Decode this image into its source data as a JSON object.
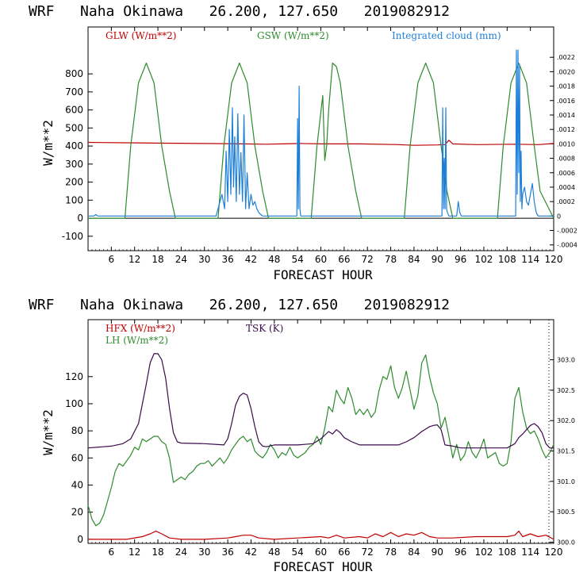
{
  "chart_data": [
    {
      "type": "line",
      "title": "WRF   Naha Okinawa   26.200, 127.650   2019082912",
      "xlabel": "FORECAST HOUR",
      "ylabel": "W/m**2",
      "xlim": [
        0,
        120
      ],
      "ylim": [
        -180,
        1060
      ],
      "yticks": [
        "-100",
        "0",
        "100",
        "200",
        "300",
        "400",
        "500",
        "600",
        "700",
        "800"
      ],
      "xticks": [
        "6",
        "12",
        "18",
        "24",
        "30",
        "36",
        "42",
        "48",
        "54",
        "60",
        "66",
        "72",
        "78",
        "84",
        "90",
        "96",
        "102",
        "108",
        "114",
        "120"
      ],
      "y2lim": [
        -0.00048,
        0.00262
      ],
      "y2ticks": [
        "-.0004",
        "-.0002",
        "0",
        ".0002",
        ".0004",
        ".0006",
        ".0008",
        ".0010",
        ".0012",
        ".0014",
        ".0016",
        ".0018",
        ".0020",
        ".0022"
      ],
      "grid": false,
      "legend": "top",
      "series": [
        {
          "name": "GLW (W/m**2)",
          "color": "#c00000",
          "x": [
            0,
            10,
            20,
            30,
            40,
            46,
            50,
            55,
            60,
            70,
            80,
            84,
            90,
            92,
            93,
            94,
            100,
            110,
            116,
            120
          ],
          "y": [
            420,
            418,
            416,
            414,
            412,
            410,
            412,
            414,
            412,
            412,
            408,
            404,
            406,
            408,
            432,
            412,
            408,
            410,
            408,
            414
          ]
        },
        {
          "name": "GSW (W/m**2)",
          "color": "#2e8b2e",
          "x": [
            0,
            9.5,
            11,
            13,
            15,
            17,
            19,
            21,
            22.5,
            33.5,
            35,
            37,
            39,
            41,
            43,
            45,
            46.5,
            57.5,
            59,
            60.5,
            61,
            61.5,
            62,
            63,
            64,
            65,
            67,
            69,
            70.5,
            81.5,
            83,
            85,
            87,
            89,
            91,
            92.5,
            94,
            105.5,
            107,
            109,
            111,
            113,
            115,
            116.5,
            120
          ],
          "y": [
            0,
            0,
            400,
            750,
            860,
            750,
            400,
            150,
            0,
            0,
            400,
            750,
            860,
            750,
            400,
            150,
            0,
            0,
            400,
            680,
            320,
            400,
            600,
            860,
            840,
            750,
            400,
            150,
            0,
            0,
            400,
            750,
            860,
            750,
            400,
            150,
            0,
            0,
            400,
            750,
            860,
            750,
            400,
            150,
            0
          ]
        },
        {
          "name": "Integrated cloud (mm)",
          "color": "#1e7fd8",
          "x": [
            0,
            1.5,
            2,
            2.5,
            33,
            34.5,
            35.2,
            35.6,
            36,
            36.4,
            36.8,
            37.2,
            37.5,
            37.8,
            38.2,
            38.6,
            39,
            39.4,
            39.8,
            40.2,
            40.6,
            41,
            41.5,
            42,
            42.5,
            43,
            43.5,
            44,
            44.5,
            45,
            53.8,
            54,
            54.2,
            54.4,
            54.6,
            54.8,
            91.2,
            91.4,
            91.6,
            91.8,
            92,
            92.2,
            92.4,
            92.6,
            93,
            95,
            95.4,
            95.8,
            96.2,
            110.2,
            110.4,
            110.6,
            110.8,
            111,
            111.2,
            111.4,
            111.6,
            111.8,
            112,
            112.5,
            113,
            113.5,
            114,
            114.5,
            115,
            115.5,
            116,
            120
          ],
          "y": [
            0,
            0,
            2e-05,
            0,
            0,
            0.0003,
            0.0001,
            0.0009,
            0.0002,
            0.0012,
            0.0003,
            0.0015,
            0.0004,
            0.0011,
            0.0002,
            0.00142,
            0.0003,
            0.00088,
            0.0002,
            0.0014,
            0.0001,
            0.0006,
            0.0001,
            0.0003,
            0.00015,
            0.0002,
            0.0001,
            5e-05,
            2e-05,
            0,
            0,
            0.00135,
            0.0001,
            0.0018,
            0.0001,
            0,
            0,
            0.0015,
            0.0001,
            0.0008,
            0.0001,
            0.0015,
            0.0001,
            5e-05,
            0,
            0,
            0.0002,
            5e-05,
            0,
            0,
            0.0023,
            0.0003,
            0.0023,
            0.0006,
            0.0021,
            0.0002,
            0.0009,
            0.0001,
            0.0003,
            0.0004,
            0.0002,
            0.00015,
            0.0003,
            0.00045,
            0.0002,
            5e-05,
            0,
            0
          ]
        }
      ]
    },
    {
      "type": "line",
      "title": "WRF   Naha Okinawa   26.200, 127.650   2019082912",
      "xlabel": "FORECAST HOUR",
      "ylabel": "W/m**2",
      "xlim": [
        0,
        120
      ],
      "ylim": [
        -3,
        162
      ],
      "yticks": [
        "0",
        "20",
        "40",
        "60",
        "80",
        "100",
        "120"
      ],
      "xticks": [
        "6",
        "12",
        "18",
        "24",
        "30",
        "36",
        "42",
        "48",
        "54",
        "60",
        "66",
        "72",
        "78",
        "84",
        "90",
        "96",
        "102",
        "108",
        "114",
        "120"
      ],
      "y2lim": [
        299.98,
        303.66
      ],
      "y2ticks": [
        "300.0",
        "300.5",
        "301.0",
        "301.5",
        "302.0",
        "302.5",
        "303.0"
      ],
      "grid": false,
      "legend": "top",
      "series": [
        {
          "name": "HFX (W/m**2)",
          "color": "#c00000",
          "x": [
            0,
            10,
            14,
            16,
            17.5,
            19,
            21,
            24,
            30,
            36,
            38,
            40,
            42,
            44,
            48,
            54,
            60,
            62,
            64,
            66,
            70,
            72,
            74,
            76,
            78,
            80,
            82,
            84,
            86,
            88,
            90,
            94,
            100,
            104,
            108,
            110,
            111,
            112,
            114,
            116,
            118,
            120
          ],
          "y": [
            0,
            0,
            2,
            4,
            6,
            4,
            1,
            0,
            0,
            1,
            2,
            3,
            3,
            1,
            0,
            1,
            2,
            1,
            3,
            1,
            2,
            1,
            4,
            2,
            5,
            2,
            4,
            3,
            5,
            2,
            1,
            1,
            2,
            2,
            2,
            3,
            6,
            2,
            4,
            2,
            3,
            0
          ]
        },
        {
          "name": "LH (W/m**2)",
          "color": "#2e8b2e",
          "x": [
            0,
            1,
            2,
            3,
            4,
            5,
            6,
            7,
            8,
            9,
            10,
            11,
            12,
            13,
            14,
            15,
            16,
            17,
            18,
            19,
            20,
            21,
            22,
            23,
            24,
            25,
            26,
            27,
            28,
            29,
            30,
            31,
            32,
            33,
            34,
            35,
            36,
            37,
            38,
            39,
            40,
            41,
            42,
            43,
            44,
            45,
            46,
            47,
            48,
            49,
            50,
            51,
            52,
            53,
            54,
            55,
            56,
            57,
            58,
            59,
            60,
            61,
            62,
            63,
            64,
            65,
            66,
            67,
            68,
            69,
            70,
            71,
            72,
            73,
            74,
            75,
            76,
            77,
            78,
            79,
            80,
            81,
            82,
            83,
            84,
            85,
            86,
            87,
            88,
            89,
            90,
            91,
            92,
            93,
            94,
            95,
            96,
            97,
            98,
            99,
            100,
            101,
            102,
            103,
            104,
            105,
            106,
            107,
            108,
            109,
            110,
            111,
            112,
            113,
            114,
            115,
            116,
            117,
            118,
            119,
            120
          ],
          "y": [
            25,
            15,
            10,
            12,
            18,
            28,
            38,
            50,
            56,
            54,
            58,
            62,
            68,
            66,
            74,
            72,
            74,
            76,
            76,
            72,
            70,
            60,
            42,
            44,
            46,
            44,
            48,
            50,
            54,
            56,
            56,
            58,
            54,
            57,
            60,
            56,
            60,
            66,
            70,
            74,
            76,
            72,
            74,
            65,
            62,
            60,
            64,
            70,
            66,
            60,
            64,
            62,
            68,
            62,
            60,
            62,
            64,
            68,
            70,
            76,
            70,
            82,
            98,
            94,
            110,
            104,
            100,
            112,
            104,
            92,
            96,
            92,
            96,
            90,
            94,
            110,
            120,
            118,
            128,
            112,
            104,
            112,
            124,
            110,
            96,
            106,
            130,
            136,
            120,
            108,
            100,
            82,
            90,
            76,
            60,
            70,
            58,
            62,
            72,
            64,
            60,
            66,
            74,
            60,
            62,
            64,
            56,
            54,
            56,
            72,
            104,
            112,
            94,
            82,
            78,
            80,
            74,
            66,
            60,
            64,
            70
          ]
        },
        {
          "name": "TSK (K)",
          "color": "#3a0a4a",
          "x": [
            0,
            6,
            9,
            11,
            13,
            15,
            16,
            17,
            18,
            19,
            20,
            21,
            22,
            23,
            24,
            30,
            35,
            36,
            37,
            38,
            39,
            40,
            41,
            42,
            43,
            44,
            45,
            46,
            48,
            54,
            58,
            60,
            62,
            63,
            64,
            65,
            66,
            68,
            70,
            80,
            82,
            84,
            86,
            88,
            89,
            90,
            91,
            92,
            94,
            96,
            102,
            108,
            110,
            111,
            112,
            113,
            114,
            115,
            116,
            117,
            118,
            119,
            120
          ],
          "y": [
            301.55,
            301.58,
            301.62,
            301.7,
            301.95,
            302.6,
            302.95,
            303.1,
            303.1,
            303.0,
            302.7,
            302.2,
            301.8,
            301.65,
            301.63,
            301.62,
            301.6,
            301.7,
            301.95,
            302.25,
            302.4,
            302.45,
            302.42,
            302.2,
            301.9,
            301.65,
            301.58,
            301.57,
            301.6,
            301.6,
            301.62,
            301.7,
            301.82,
            301.78,
            301.85,
            301.8,
            301.72,
            301.65,
            301.6,
            301.6,
            301.65,
            301.72,
            301.82,
            301.9,
            301.92,
            301.93,
            301.85,
            301.6,
            301.58,
            301.55,
            301.55,
            301.55,
            301.62,
            301.72,
            301.78,
            301.85,
            301.92,
            301.95,
            301.9,
            301.8,
            301.62,
            301.55,
            301.55
          ]
        }
      ]
    }
  ]
}
